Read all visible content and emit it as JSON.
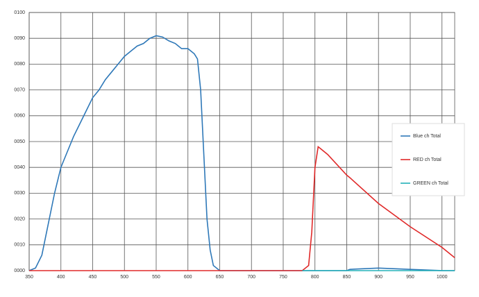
{
  "chart_data": {
    "type": "line",
    "x": [
      350,
      360,
      370,
      380,
      390,
      400,
      410,
      420,
      430,
      440,
      450,
      460,
      470,
      480,
      490,
      500,
      510,
      520,
      530,
      540,
      550,
      560,
      570,
      580,
      590,
      600,
      610,
      615,
      620,
      625,
      630,
      635,
      640,
      650,
      700,
      750,
      780,
      790,
      795,
      800,
      805,
      810,
      820,
      850,
      855,
      900,
      950,
      1000,
      1020
    ],
    "series": [
      {
        "name": "Blue ch Total",
        "color": "#2e78b8",
        "values": [
          0,
          1,
          6,
          18,
          30,
          40,
          46,
          52,
          57,
          62,
          67,
          70,
          74,
          77,
          80,
          83,
          85,
          87,
          88,
          90,
          91,
          90.5,
          89,
          88,
          86,
          86,
          84,
          82,
          70,
          45,
          20,
          8,
          2,
          0,
          0,
          0,
          0,
          0,
          0,
          0,
          0,
          0,
          0,
          0,
          0.5,
          1,
          0.5,
          0,
          0
        ]
      },
      {
        "name": "RED ch Total",
        "color": "#e02828",
        "values": [
          0,
          0,
          0,
          0,
          0,
          0,
          0,
          0,
          0,
          0,
          0,
          0,
          0,
          0,
          0,
          0,
          0,
          0,
          0,
          0,
          0,
          0,
          0,
          0,
          0,
          0,
          0,
          0,
          0,
          0,
          0,
          0,
          0,
          0,
          0,
          0,
          0,
          2,
          15,
          40,
          48,
          47,
          45,
          37,
          36,
          26,
          17,
          9,
          5
        ]
      },
      {
        "name": "GREEN ch Total",
        "color": "#22b0b8",
        "values": [
          null,
          null,
          null,
          null,
          null,
          null,
          null,
          null,
          null,
          null,
          null,
          null,
          null,
          null,
          null,
          null,
          null,
          null,
          null,
          null,
          null,
          null,
          null,
          null,
          null,
          null,
          null,
          null,
          null,
          null,
          null,
          null,
          null,
          null,
          null,
          null,
          0,
          0,
          0,
          0,
          0,
          0,
          0,
          0,
          0,
          0,
          0,
          0,
          0
        ]
      }
    ],
    "xlim": [
      350,
      1020
    ],
    "xticks": [
      350,
      400,
      450,
      500,
      550,
      600,
      650,
      700,
      750,
      800,
      850,
      900,
      950,
      1000
    ],
    "ylim": [
      0,
      100
    ],
    "yticks": [
      {
        "value": 0,
        "label": "0000"
      },
      {
        "value": 10,
        "label": "0010"
      },
      {
        "value": 20,
        "label": "0020"
      },
      {
        "value": 30,
        "label": "0030"
      },
      {
        "value": 40,
        "label": "0040"
      },
      {
        "value": 50,
        "label": "0050"
      },
      {
        "value": 60,
        "label": "0060"
      },
      {
        "value": 70,
        "label": "0070"
      },
      {
        "value": 80,
        "label": "0080"
      },
      {
        "value": 90,
        "label": "0090"
      },
      {
        "value": 100,
        "label": "0100"
      }
    ],
    "grid": true
  }
}
